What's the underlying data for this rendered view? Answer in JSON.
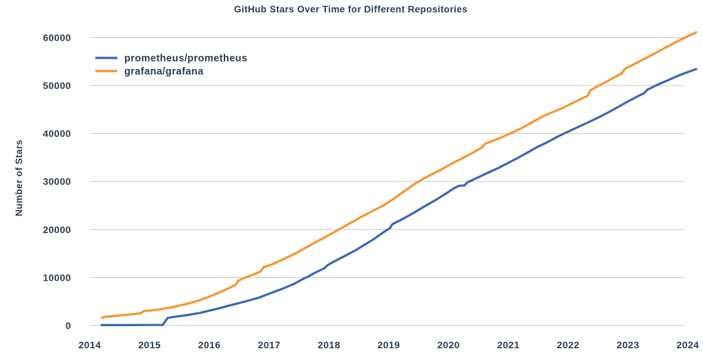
{
  "chart": {
    "colors": {
      "text": "#2E3B4E",
      "grid": "#C8C8C8",
      "background": "#FFFFFF",
      "prometheus_blue": "#3767B1",
      "grafana_orange": "#F8942D"
    }
  },
  "chart_data": {
    "type": "line",
    "title": "GitHub Stars Over Time for Different Repositories",
    "xlabel": "",
    "ylabel": "Number of Stars",
    "x_ticks": [
      2014,
      2015,
      2016,
      2017,
      2018,
      2019,
      2020,
      2021,
      2022,
      2023,
      2024
    ],
    "y_ticks": [
      0,
      10000,
      20000,
      30000,
      40000,
      50000,
      60000
    ],
    "xlim": [
      2013.95,
      2024.3
    ],
    "ylim": [
      0,
      62500
    ],
    "grid": "horizontal-only",
    "legend_position": "upper-left",
    "series": [
      {
        "name": "prometheus/prometheus",
        "color": "#3767B1",
        "points": [
          [
            2014.2,
            80
          ],
          [
            2014.6,
            90
          ],
          [
            2015.0,
            110
          ],
          [
            2015.22,
            130
          ],
          [
            2015.3,
            1550
          ],
          [
            2015.38,
            1750
          ],
          [
            2015.5,
            1950
          ],
          [
            2015.67,
            2250
          ],
          [
            2015.83,
            2600
          ],
          [
            2016.0,
            3100
          ],
          [
            2016.17,
            3600
          ],
          [
            2016.33,
            4150
          ],
          [
            2016.5,
            4700
          ],
          [
            2016.67,
            5250
          ],
          [
            2016.83,
            5800
          ],
          [
            2016.92,
            6250
          ],
          [
            2017.08,
            7000
          ],
          [
            2017.25,
            7800
          ],
          [
            2017.42,
            8700
          ],
          [
            2017.58,
            9800
          ],
          [
            2017.67,
            10300
          ],
          [
            2017.75,
            10900
          ],
          [
            2017.92,
            11900
          ],
          [
            2017.98,
            12600
          ],
          [
            2018.08,
            13300
          ],
          [
            2018.25,
            14400
          ],
          [
            2018.42,
            15500
          ],
          [
            2018.58,
            16700
          ],
          [
            2018.75,
            18000
          ],
          [
            2018.92,
            19500
          ],
          [
            2019.02,
            20300
          ],
          [
            2019.06,
            21100
          ],
          [
            2019.25,
            22300
          ],
          [
            2019.42,
            23500
          ],
          [
            2019.58,
            24700
          ],
          [
            2019.75,
            25900
          ],
          [
            2019.92,
            27200
          ],
          [
            2020.08,
            28500
          ],
          [
            2020.17,
            29100
          ],
          [
            2020.27,
            29200
          ],
          [
            2020.31,
            29800
          ],
          [
            2020.5,
            30900
          ],
          [
            2020.67,
            31900
          ],
          [
            2020.83,
            32800
          ],
          [
            2021.0,
            33900
          ],
          [
            2021.17,
            35000
          ],
          [
            2021.33,
            36100
          ],
          [
            2021.5,
            37300
          ],
          [
            2021.67,
            38300
          ],
          [
            2021.83,
            39400
          ],
          [
            2022.0,
            40400
          ],
          [
            2022.17,
            41400
          ],
          [
            2022.33,
            42300
          ],
          [
            2022.5,
            43300
          ],
          [
            2022.67,
            44400
          ],
          [
            2022.83,
            45500
          ],
          [
            2023.0,
            46700
          ],
          [
            2023.17,
            47800
          ],
          [
            2023.27,
            48400
          ],
          [
            2023.32,
            49100
          ],
          [
            2023.5,
            50200
          ],
          [
            2023.67,
            51100
          ],
          [
            2023.83,
            52000
          ],
          [
            2024.0,
            52800
          ],
          [
            2024.14,
            53400
          ]
        ]
      },
      {
        "name": "grafana/grafana",
        "color": "#F8942D",
        "points": [
          [
            2014.2,
            1600
          ],
          [
            2014.25,
            1800
          ],
          [
            2014.42,
            2000
          ],
          [
            2014.58,
            2200
          ],
          [
            2014.75,
            2400
          ],
          [
            2014.86,
            2600
          ],
          [
            2014.9,
            3000
          ],
          [
            2015.08,
            3200
          ],
          [
            2015.17,
            3350
          ],
          [
            2015.33,
            3700
          ],
          [
            2015.5,
            4150
          ],
          [
            2015.67,
            4650
          ],
          [
            2015.83,
            5250
          ],
          [
            2016.0,
            6000
          ],
          [
            2016.17,
            6900
          ],
          [
            2016.33,
            7800
          ],
          [
            2016.44,
            8500
          ],
          [
            2016.48,
            9300
          ],
          [
            2016.58,
            9900
          ],
          [
            2016.75,
            10700
          ],
          [
            2016.86,
            11300
          ],
          [
            2016.9,
            12100
          ],
          [
            2017.08,
            12900
          ],
          [
            2017.25,
            13900
          ],
          [
            2017.42,
            14900
          ],
          [
            2017.58,
            16000
          ],
          [
            2017.75,
            17200
          ],
          [
            2017.92,
            18300
          ],
          [
            2018.08,
            19400
          ],
          [
            2018.25,
            20600
          ],
          [
            2018.42,
            21800
          ],
          [
            2018.58,
            22900
          ],
          [
            2018.75,
            24000
          ],
          [
            2018.92,
            25100
          ],
          [
            2019.08,
            26400
          ],
          [
            2019.25,
            27900
          ],
          [
            2019.42,
            29400
          ],
          [
            2019.58,
            30600
          ],
          [
            2019.75,
            31700
          ],
          [
            2019.92,
            32800
          ],
          [
            2020.08,
            33900
          ],
          [
            2020.25,
            35000
          ],
          [
            2020.42,
            36100
          ],
          [
            2020.56,
            37100
          ],
          [
            2020.6,
            37800
          ],
          [
            2020.75,
            38500
          ],
          [
            2020.92,
            39400
          ],
          [
            2021.08,
            40300
          ],
          [
            2021.25,
            41300
          ],
          [
            2021.42,
            42500
          ],
          [
            2021.58,
            43600
          ],
          [
            2021.75,
            44500
          ],
          [
            2021.92,
            45400
          ],
          [
            2022.08,
            46400
          ],
          [
            2022.25,
            47400
          ],
          [
            2022.33,
            47900
          ],
          [
            2022.37,
            49000
          ],
          [
            2022.5,
            49900
          ],
          [
            2022.67,
            51000
          ],
          [
            2022.83,
            52100
          ],
          [
            2022.9,
            52600
          ],
          [
            2022.95,
            53500
          ],
          [
            2023.08,
            54300
          ],
          [
            2023.25,
            55400
          ],
          [
            2023.42,
            56500
          ],
          [
            2023.58,
            57600
          ],
          [
            2023.75,
            58700
          ],
          [
            2023.92,
            59800
          ],
          [
            2024.08,
            60700
          ],
          [
            2024.14,
            61100
          ]
        ]
      }
    ]
  }
}
